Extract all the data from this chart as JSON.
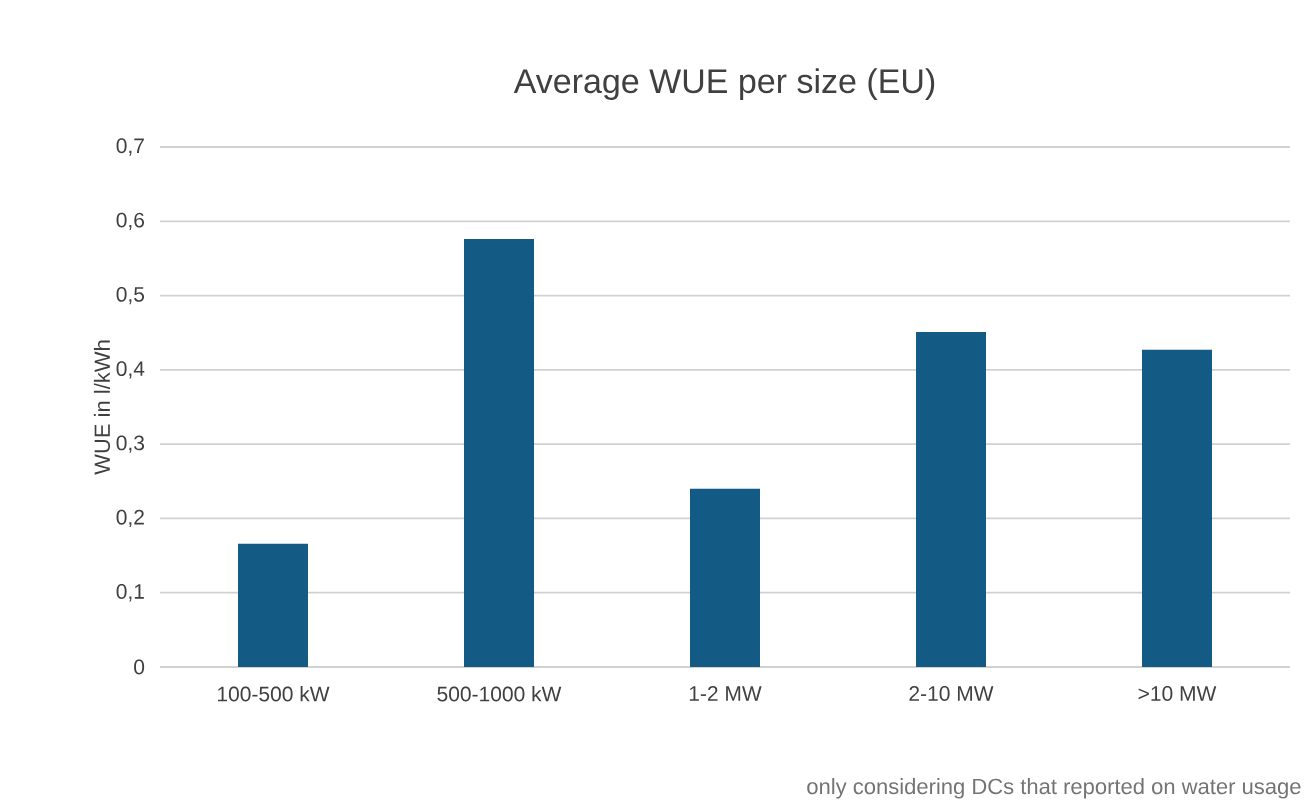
{
  "chart_data": {
    "type": "bar",
    "title": "Average WUE per size (EU)",
    "ylabel": "WUE in l/kWh",
    "categories": [
      "100-500 kW",
      "500-1000 kW",
      "1-2 MW",
      "2-10 MW",
      ">10 MW"
    ],
    "values": [
      0.166,
      0.576,
      0.24,
      0.451,
      0.427
    ],
    "color": "#135a84",
    "ylim": [
      0,
      0.7
    ],
    "yticks": [
      0,
      {
        "value": 0.1,
        "label": "0,1"
      },
      {
        "value": 0.2,
        "label": "0,2"
      },
      {
        "value": 0.3,
        "label": "0,3"
      },
      {
        "value": 0.4,
        "label": "0,4"
      },
      {
        "value": 0.5,
        "label": "0,5"
      },
      {
        "value": 0.6,
        "label": "0,6"
      },
      {
        "value": 0.7,
        "label": "0,7"
      }
    ],
    "grid": "y",
    "annotations": [
      "only considering DCs that reported on water usage"
    ]
  }
}
